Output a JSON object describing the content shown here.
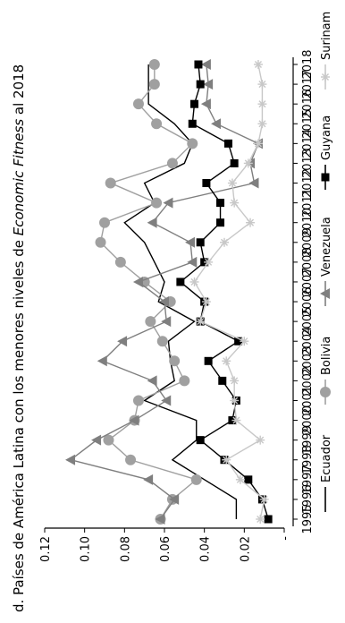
{
  "chart_data": {
    "type": "line",
    "title": "d. Países de América Latina con los menores niveles de Economic Fitness al 2018",
    "title_prefix": "d. Países de América Latina con los menores niveles de ",
    "title_italic": "Economic Fitness",
    "title_suffix": " al 2018",
    "xlabel": "",
    "ylabel": "",
    "x": [
      1995,
      1996,
      1997,
      1998,
      1999,
      2000,
      2001,
      2002,
      2003,
      2004,
      2005,
      2006,
      2007,
      2008,
      2009,
      2010,
      2011,
      2012,
      2013,
      2014,
      2015,
      2016,
      2017,
      2018
    ],
    "x_tick_labels": [
      "1995",
      "1996",
      "1997",
      "1998",
      "1999",
      "2000",
      "2001",
      "2002",
      "2003",
      "2004",
      "2005",
      "2006",
      "2007",
      "2008",
      "2009",
      "2010",
      "2011",
      "2012",
      "2013",
      "2014",
      "2015",
      "2016",
      "2017",
      "2018"
    ],
    "ylim": [
      0,
      0.12
    ],
    "y_ticks": [
      0,
      0.02,
      0.04,
      0.06,
      0.08,
      0.1,
      0.12
    ],
    "y_tick_labels": [
      "-",
      "0.02",
      "0.04",
      "0.06",
      "0.08",
      "0.10",
      "0.12"
    ],
    "grid": false,
    "legend_position": "bottom",
    "series": [
      {
        "name": "Ecuador",
        "color": "#000000",
        "marker": "none",
        "values": [
          0.024,
          0.024,
          0.04,
          0.056,
          0.044,
          0.044,
          0.07,
          0.055,
          0.057,
          0.058,
          0.045,
          0.063,
          0.06,
          0.065,
          0.07,
          0.08,
          0.065,
          0.07,
          0.05,
          0.046,
          0.055,
          0.068,
          0.068,
          0.068
        ]
      },
      {
        "name": "Bolivia",
        "color": "#a0a0a0",
        "marker": "circle",
        "values": [
          0.062,
          0.056,
          0.044,
          0.077,
          0.088,
          0.075,
          0.073,
          0.05,
          0.055,
          0.061,
          0.067,
          0.057,
          0.07,
          0.082,
          0.092,
          0.09,
          0.064,
          0.087,
          0.056,
          0.046,
          0.064,
          0.073,
          0.065,
          0.065
        ]
      },
      {
        "name": "Venezuela",
        "color": "#7f7f7f",
        "marker": "triangle",
        "values": [
          0.062,
          0.055,
          0.068,
          0.107,
          0.094,
          0.075,
          0.059,
          0.066,
          0.091,
          0.081,
          0.059,
          0.06,
          0.073,
          0.046,
          0.047,
          0.066,
          0.058,
          0.015,
          0.017,
          0.013,
          0.034,
          0.039,
          0.038,
          0.039
        ]
      },
      {
        "name": "Guyana",
        "color": "#000000",
        "marker": "square",
        "values": [
          0.008,
          0.011,
          0.018,
          0.03,
          0.042,
          0.026,
          0.024,
          0.031,
          0.038,
          0.023,
          0.042,
          0.04,
          0.052,
          0.04,
          0.042,
          0.032,
          0.032,
          0.039,
          0.025,
          0.028,
          0.046,
          0.045,
          0.042,
          0.043
        ]
      },
      {
        "name": "Surinam",
        "color": "#c8c8c8",
        "marker": "asterisk",
        "values": [
          0.012,
          0.01,
          0.022,
          0.029,
          0.012,
          0.024,
          0.025,
          0.025,
          0.029,
          0.02,
          0.042,
          0.039,
          0.045,
          0.038,
          0.03,
          0.017,
          0.025,
          0.026,
          0.018,
          0.013,
          0.011,
          0.011,
          0.011,
          0.013
        ]
      }
    ]
  }
}
